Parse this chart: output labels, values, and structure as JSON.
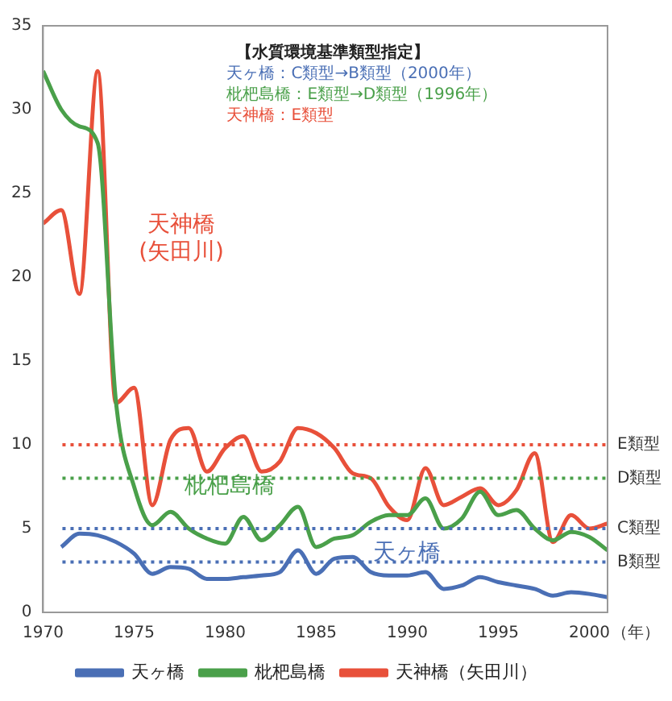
{
  "chart_data": {
    "type": "line",
    "xlabel": "（年）",
    "x": [
      1970,
      1971,
      1972,
      1973,
      1974,
      1975,
      1976,
      1977,
      1978,
      1979,
      1980,
      1981,
      1982,
      1983,
      1984,
      1985,
      1986,
      1987,
      1988,
      1989,
      1990,
      1991,
      1992,
      1993,
      1994,
      1995,
      1996,
      1997,
      1998,
      1999,
      2000,
      2001
    ],
    "series": [
      {
        "name": "天ヶ橋",
        "color": "#4a6fb5",
        "values": [
          null,
          3.9,
          4.7,
          4.6,
          4.2,
          3.5,
          2.3,
          2.7,
          2.6,
          2.0,
          2.0,
          2.1,
          2.2,
          2.4,
          3.7,
          2.3,
          3.2,
          3.3,
          2.4,
          2.2,
          2.2,
          2.4,
          1.4,
          1.6,
          2.1,
          1.8,
          1.6,
          1.4,
          1.0,
          1.2,
          1.1,
          0.9
        ]
      },
      {
        "name": "枇杷島橋",
        "color": "#4aa04a",
        "values": [
          32.3,
          30.0,
          29.0,
          28.0,
          12.6,
          7.5,
          5.2,
          6.0,
          5.0,
          4.4,
          4.1,
          5.7,
          4.3,
          5.2,
          6.3,
          3.9,
          4.4,
          4.6,
          5.4,
          5.8,
          5.8,
          6.8,
          5.0,
          5.6,
          7.2,
          5.8,
          6.1,
          5.0,
          4.3,
          4.8,
          4.5,
          3.7
        ]
      },
      {
        "name": "天神橋（矢田川）",
        "color": "#e8503a",
        "values": [
          23.2,
          24.0,
          19.0,
          32.3,
          12.5,
          13.4,
          6.4,
          10.3,
          11.0,
          8.4,
          9.8,
          10.5,
          8.4,
          9.0,
          11.0,
          10.7,
          9.8,
          8.3,
          8.0,
          6.3,
          5.5,
          8.6,
          6.4,
          6.9,
          7.4,
          6.4,
          7.3,
          9.5,
          4.2,
          5.8,
          5.0,
          5.3
        ]
      }
    ],
    "xlim": [
      1970,
      2001
    ],
    "xticks": [
      1970,
      1975,
      1980,
      1985,
      1990,
      1995,
      2000
    ],
    "ylim": [
      0,
      35
    ],
    "yticks": [
      0,
      5,
      10,
      15,
      20,
      25,
      30,
      35
    ],
    "ref_lines": [
      {
        "axis": "y",
        "value": 10,
        "label": "E類型",
        "color": "#e8503a",
        "line_style": "dotted"
      },
      {
        "axis": "y",
        "value": 8,
        "label": "D類型",
        "color": "#4aa04a",
        "line_style": "dotted"
      },
      {
        "axis": "y",
        "value": 5,
        "label": "C類型",
        "color": "#4a6fb5",
        "line_style": "dotted"
      },
      {
        "axis": "y",
        "value": 3,
        "label": "B類型",
        "color": "#4a6fb5",
        "line_style": "dotted"
      }
    ],
    "annotations": [
      "【水質環境基準類型指定】",
      "天ヶ橋：C類型→B類型（2000年）",
      "枇杷島橋：E類型→D類型（1996年）",
      "天神橋：E類型",
      "天神橋\n(矢田川)",
      "枇杷島橋",
      "天ヶ橋"
    ],
    "grid": false,
    "legend": "bottom",
    "marker": "none",
    "line_style": "solid"
  }
}
